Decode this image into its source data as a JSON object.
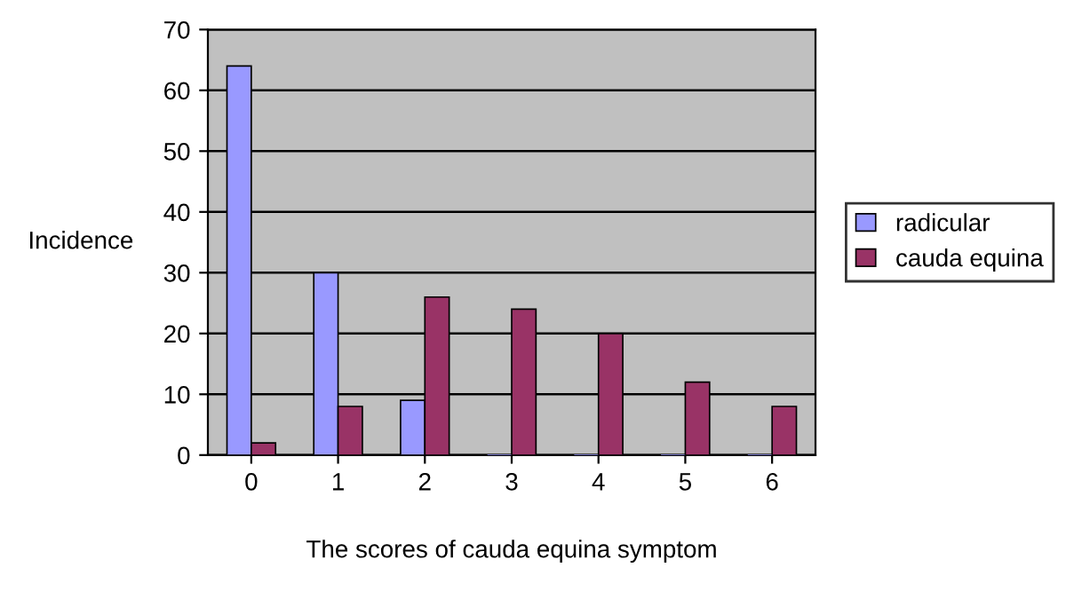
{
  "chart_data": {
    "type": "bar",
    "xlabel": "The scores of cauda equina symptom",
    "ylabel": "Incidence",
    "categories": [
      "0",
      "1",
      "2",
      "3",
      "4",
      "5",
      "6"
    ],
    "series": [
      {
        "name": "radicular",
        "color": "#9999ff",
        "values": [
          64,
          30,
          9,
          0,
          0,
          0,
          0
        ]
      },
      {
        "name": "cauda equina",
        "color": "#993366",
        "values": [
          2,
          8,
          26,
          24,
          20,
          12,
          8
        ]
      }
    ],
    "ylim": [
      0,
      70
    ],
    "yticks": [
      0,
      10,
      20,
      30,
      40,
      50,
      60,
      70
    ],
    "grid": "y",
    "legend": "right"
  }
}
